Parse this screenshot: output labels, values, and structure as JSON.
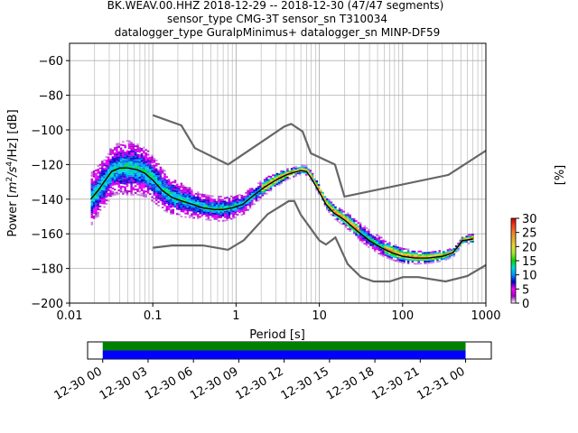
{
  "title_lines": [
    "BK.WEAV.00.HHZ   2018-12-29 -- 2018-12-30  (47/47 segments)",
    "sensor_type CMG-3T sensor_sn T310034",
    "datalogger_type GuralpMinimus+ datalogger_sn MINP-DF59"
  ],
  "chart_data": {
    "type": "heatmap",
    "xlabel": "Period [s]",
    "ylabel": "Power [m²/s⁴/Hz] [dB]",
    "ylabel_parts": {
      "pre": "Power [",
      "m": "m",
      "sup1": "2",
      "s": "/s",
      "sup2": "4",
      "post": "/Hz] [dB]"
    },
    "x_scale": "log",
    "xlim": [
      0.01,
      1000
    ],
    "ylim": [
      -200,
      -50
    ],
    "x_ticks": [
      0.01,
      0.1,
      1,
      10,
      100,
      1000
    ],
    "x_tick_labels": [
      "0.01",
      "0.1",
      "1",
      "10",
      "100",
      "1000"
    ],
    "y_ticks": [
      -200,
      -180,
      -160,
      -140,
      -120,
      -100,
      -80,
      -60
    ],
    "y_tick_labels": [
      "−200",
      "−180",
      "−160",
      "−140",
      "−120",
      "−100",
      "−80",
      "−60"
    ],
    "grid": true,
    "nhnm": [
      [
        0.1,
        -91.5
      ],
      [
        0.22,
        -97.4
      ],
      [
        0.32,
        -110.5
      ],
      [
        0.8,
        -120
      ],
      [
        3.8,
        -98
      ],
      [
        4.6,
        -96.5
      ],
      [
        6.3,
        -101
      ],
      [
        7.9,
        -113.5
      ],
      [
        15.4,
        -120
      ],
      [
        20,
        -138.5
      ],
      [
        354.8,
        -126
      ],
      [
        1000,
        -112
      ]
    ],
    "nlnm": [
      [
        0.1,
        -168
      ],
      [
        0.17,
        -166.7
      ],
      [
        0.4,
        -166.7
      ],
      [
        0.8,
        -169.2
      ],
      [
        1.24,
        -163.7
      ],
      [
        2.4,
        -148.6
      ],
      [
        4.3,
        -141.1
      ],
      [
        5,
        -141.1
      ],
      [
        6,
        -149
      ],
      [
        10,
        -163.8
      ],
      [
        12,
        -166.2
      ],
      [
        15.6,
        -162.1
      ],
      [
        21.9,
        -177.5
      ],
      [
        31.6,
        -185
      ],
      [
        45,
        -187.5
      ],
      [
        70,
        -187.5
      ],
      [
        101,
        -185
      ],
      [
        154,
        -185
      ],
      [
        328,
        -187.5
      ],
      [
        600,
        -184.4
      ],
      [
        1000,
        -178
      ]
    ],
    "mean_psd": [
      [
        0.018,
        -140
      ],
      [
        0.022,
        -135
      ],
      [
        0.026,
        -130
      ],
      [
        0.032,
        -124
      ],
      [
        0.04,
        -122
      ],
      [
        0.05,
        -122
      ],
      [
        0.065,
        -123
      ],
      [
        0.08,
        -125
      ],
      [
        0.1,
        -129
      ],
      [
        0.13,
        -135
      ],
      [
        0.17,
        -139
      ],
      [
        0.22,
        -141
      ],
      [
        0.3,
        -143
      ],
      [
        0.4,
        -145
      ],
      [
        0.55,
        -146
      ],
      [
        0.7,
        -146
      ],
      [
        0.9,
        -145
      ],
      [
        1.2,
        -143
      ],
      [
        1.6,
        -138
      ],
      [
        2.2,
        -133
      ],
      [
        3,
        -129
      ],
      [
        4,
        -126
      ],
      [
        5,
        -124.5
      ],
      [
        6,
        -123.5
      ],
      [
        7,
        -124
      ],
      [
        8,
        -128
      ],
      [
        10,
        -136
      ],
      [
        12,
        -143
      ],
      [
        15,
        -148
      ],
      [
        20,
        -152
      ],
      [
        28,
        -158
      ],
      [
        40,
        -164
      ],
      [
        55,
        -168
      ],
      [
        75,
        -171
      ],
      [
        100,
        -173
      ],
      [
        140,
        -174
      ],
      [
        200,
        -174
      ],
      [
        300,
        -173
      ],
      [
        400,
        -171
      ],
      [
        450,
        -168
      ],
      [
        520,
        -164
      ],
      [
        700,
        -163
      ]
    ],
    "spread_pts": [
      [
        0.018,
        15
      ],
      [
        0.03,
        14
      ],
      [
        0.05,
        16
      ],
      [
        0.08,
        14
      ],
      [
        0.12,
        12
      ],
      [
        0.2,
        10
      ],
      [
        0.4,
        7
      ],
      [
        0.7,
        7
      ],
      [
        1.2,
        6
      ],
      [
        2,
        5
      ],
      [
        3,
        4
      ],
      [
        5,
        2.5
      ],
      [
        7,
        2.5
      ],
      [
        10,
        3
      ],
      [
        15,
        4
      ],
      [
        30,
        5
      ],
      [
        60,
        5
      ],
      [
        120,
        4
      ],
      [
        300,
        3
      ],
      [
        500,
        2
      ],
      [
        700,
        3
      ]
    ],
    "colorbar": {
      "label": "[%]",
      "range": [
        0,
        30
      ],
      "ticks": [
        0,
        5,
        10,
        15,
        20,
        25,
        30
      ],
      "tick_labels": [
        "0",
        "5",
        "10",
        "15",
        "20",
        "25",
        "30"
      ],
      "colormap": [
        "#ffffff",
        "#a000c8",
        "#ff00ff",
        "#0000c8",
        "#0096ff",
        "#00dcdc",
        "#00dc00",
        "#a0e632",
        "#e6dc32",
        "#e6af2d",
        "#f08228",
        "#fa3c1e",
        "#c80000"
      ]
    },
    "colors": {
      "nm_lines": "#666666",
      "mean_line": "#000000"
    }
  },
  "time_axis": {
    "labels": [
      "12-30 00",
      "12-30 03",
      "12-30 06",
      "12-30 09",
      "12-30 12",
      "12-30 15",
      "12-30 18",
      "12-30 21",
      "12-31 00"
    ],
    "range_hours": [
      0,
      24
    ],
    "axis_start_hour": -1.0,
    "axis_end_hour": 1.7,
    "coverage": {
      "start_hour": 0,
      "end_hour": 24
    },
    "colors": {
      "top": "#008000",
      "bottom": "#0000ff"
    }
  }
}
